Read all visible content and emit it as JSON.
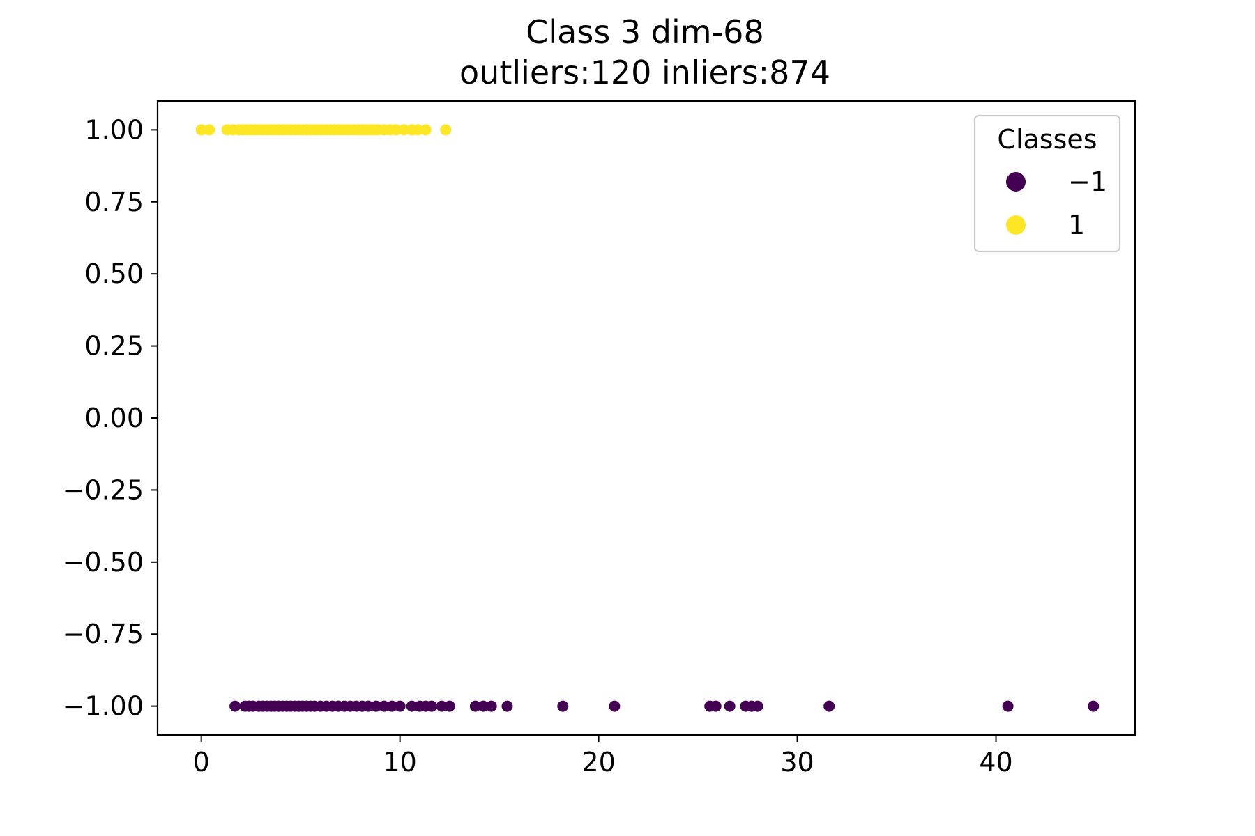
{
  "chart_data": {
    "type": "scatter",
    "title": "Class 3 dim-68",
    "subtitle": "outliers:120  inliers:874",
    "xlabel": "",
    "ylabel": "",
    "xlim": [
      -2.2,
      47
    ],
    "ylim": [
      -1.1,
      1.1
    ],
    "x_ticks": [
      0,
      10,
      20,
      30,
      40
    ],
    "x_tick_labels": [
      "0",
      "10",
      "20",
      "30",
      "40"
    ],
    "y_ticks": [
      1.0,
      0.75,
      0.5,
      0.25,
      0.0,
      -0.25,
      -0.5,
      -0.75,
      -1.0
    ],
    "y_tick_labels": [
      "1.00",
      "0.75",
      "0.50",
      "0.25",
      "0.00",
      "−0.25",
      "−0.50",
      "−0.75",
      "−1.00"
    ],
    "grid": false,
    "legend": {
      "title": "Classes",
      "placement": "top-right",
      "entries": [
        {
          "label": "−1",
          "color": "#440154"
        },
        {
          "label": "1",
          "color": "#fde725"
        }
      ]
    },
    "series": [
      {
        "name": "1",
        "color": "#fde725",
        "y": 1,
        "x": [
          0.0,
          0.4,
          1.3,
          1.6,
          1.9,
          2.1,
          2.3,
          2.5,
          2.7,
          2.9,
          3.1,
          3.3,
          3.5,
          3.7,
          3.9,
          4.1,
          4.3,
          4.5,
          4.7,
          4.9,
          5.1,
          5.3,
          5.5,
          5.7,
          5.9,
          6.1,
          6.3,
          6.5,
          6.7,
          6.9,
          7.1,
          7.3,
          7.5,
          7.7,
          7.9,
          8.1,
          8.3,
          8.5,
          8.7,
          8.9,
          9.2,
          9.5,
          9.8,
          10.2,
          10.6,
          10.9,
          11.3,
          12.3
        ]
      },
      {
        "name": "−1",
        "color": "#440154",
        "y": -1,
        "x": [
          1.7,
          2.2,
          2.4,
          2.6,
          2.9,
          3.1,
          3.3,
          3.5,
          3.7,
          3.9,
          4.1,
          4.3,
          4.5,
          4.7,
          4.9,
          5.1,
          5.3,
          5.5,
          5.7,
          6.0,
          6.3,
          6.6,
          6.9,
          7.2,
          7.5,
          7.8,
          8.1,
          8.4,
          8.8,
          9.2,
          9.6,
          10.0,
          10.6,
          11.0,
          11.3,
          11.6,
          12.1,
          12.5,
          13.8,
          14.2,
          14.6,
          15.4,
          18.2,
          20.8,
          25.6,
          25.9,
          26.6,
          27.4,
          27.7,
          28.0,
          31.6,
          40.6,
          44.9
        ]
      }
    ]
  }
}
